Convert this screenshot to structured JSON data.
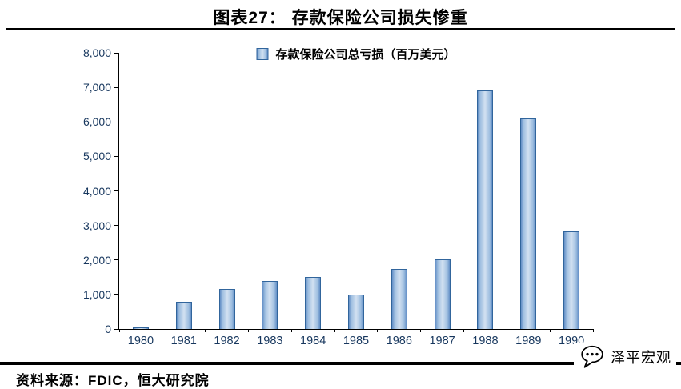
{
  "header": {
    "title": "图表27： 存款保险公司损失惨重"
  },
  "chart_data": {
    "type": "bar",
    "title": "图表27： 存款保险公司损失惨重",
    "legend": "存款保险公司总亏损（百万美元）",
    "legend_position": "top-center",
    "categories": [
      "1980",
      "1981",
      "1982",
      "1983",
      "1984",
      "1985",
      "1986",
      "1987",
      "1988",
      "1989",
      "1990"
    ],
    "values": [
      50,
      780,
      1150,
      1400,
      1500,
      1000,
      1730,
      2020,
      6900,
      6100,
      2820
    ],
    "xlabel": "",
    "ylabel": "",
    "ylim": [
      0,
      8000
    ],
    "ytick_interval": 1000,
    "ytick_labels": [
      "0",
      "1,000",
      "2,000",
      "3,000",
      "4,000",
      "5,000",
      "6,000",
      "7,000",
      "8,000"
    ],
    "grid": false,
    "bar_fill_center": "#D2E1F1",
    "bar_fill_edge": "#638EC6",
    "bar_border": "#31659C",
    "axis_label_color": "#17375E"
  },
  "footer": {
    "source": "资料来源：FDIC，恒大研究院",
    "watermark": "泽平宏观"
  }
}
